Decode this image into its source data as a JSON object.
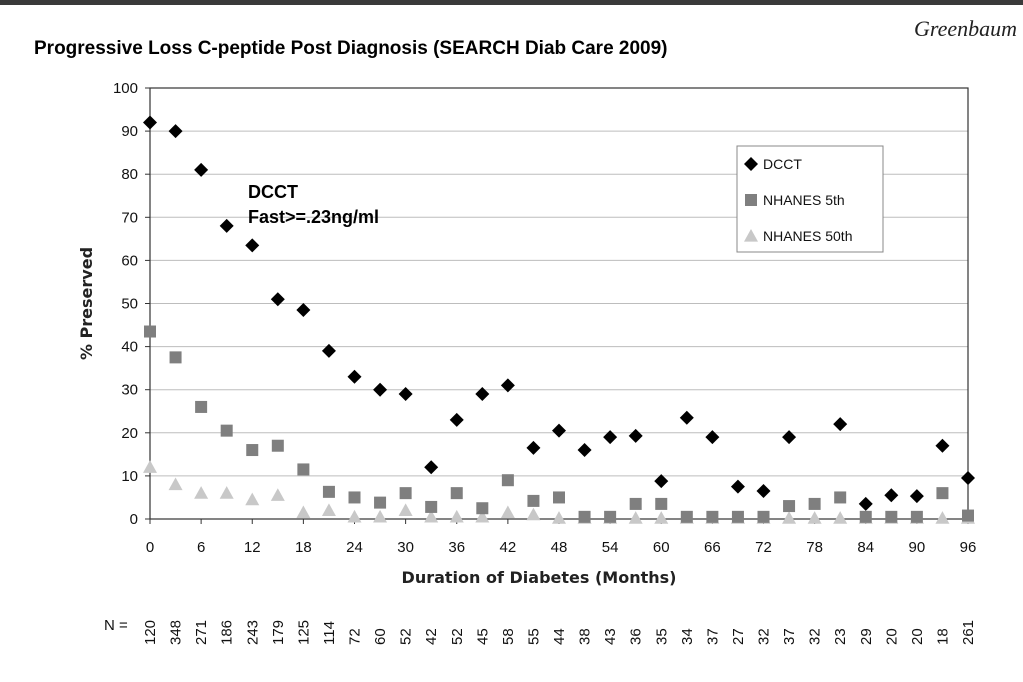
{
  "slide": {
    "title": "Progressive Loss C-peptide Post Diagnosis (SEARCH Diab Care 2009)",
    "author": "Greenbaum"
  },
  "chart_data": {
    "type": "scatter",
    "xlabel": "Duration of Diabetes (Months)",
    "ylabel": "% Preserved",
    "xlim": [
      0,
      96
    ],
    "ylim": [
      0,
      100
    ],
    "x_ticks": [
      0,
      6,
      12,
      18,
      24,
      30,
      36,
      42,
      48,
      54,
      60,
      66,
      72,
      78,
      84,
      90,
      96
    ],
    "y_ticks": [
      0,
      10,
      20,
      30,
      40,
      50,
      60,
      70,
      80,
      90,
      100
    ],
    "grid": "horizontal",
    "legend_position": "top-right",
    "annotation": [
      "DCCT",
      "Fast>=.23ng/ml"
    ],
    "n_prefix": "N =",
    "n_values": [
      "120",
      "348",
      "271",
      "186",
      "243",
      "179",
      "125",
      "114",
      "72",
      "60",
      "52",
      "42",
      "52",
      "45",
      "58",
      "55",
      "44",
      "38",
      "43",
      "36",
      "35",
      "34",
      "37",
      "27",
      "32",
      "37",
      "32",
      "23",
      "29",
      "20",
      "20",
      "18",
      "261"
    ],
    "x": [
      0,
      3,
      6,
      9,
      12,
      15,
      18,
      21,
      24,
      27,
      30,
      33,
      36,
      39,
      42,
      45,
      48,
      51,
      54,
      57,
      60,
      63,
      66,
      69,
      72,
      75,
      78,
      81,
      84,
      87,
      90,
      93,
      96
    ],
    "series": [
      {
        "name": "DCCT",
        "marker": "diamond",
        "color": "#000000",
        "values": [
          92,
          90,
          81,
          68,
          63.5,
          51,
          48.5,
          39,
          33,
          30,
          29,
          12,
          23,
          29,
          31,
          16.5,
          20.5,
          16,
          19,
          19.3,
          8.8,
          23.5,
          19,
          7.5,
          6.5,
          19,
          null,
          22,
          3.5,
          5.5,
          5.3,
          17,
          9.5
        ]
      },
      {
        "name": "NHANES 5th",
        "marker": "square",
        "color": "#7f7f7f",
        "values": [
          43.5,
          37.5,
          26,
          20.5,
          16,
          17,
          11.5,
          6.3,
          5,
          3.8,
          6,
          2.8,
          6,
          2.5,
          9,
          4.2,
          5,
          0.5,
          0.5,
          3.5,
          3.5,
          0.5,
          0.5,
          0.5,
          0.5,
          3,
          3.5,
          5,
          0.5,
          0.5,
          0.5,
          6,
          0.8
        ]
      },
      {
        "name": "NHANES 50th",
        "marker": "triangle",
        "color": "#c8c8c8",
        "values": [
          12,
          8,
          6,
          6,
          4.5,
          5.5,
          1.5,
          2,
          0.5,
          0.5,
          2,
          0.5,
          0.5,
          0.5,
          1.5,
          1,
          0.2,
          0.2,
          0.2,
          0.2,
          0.2,
          0.2,
          0.2,
          0.2,
          0.2,
          0.2,
          0.2,
          0.2,
          0.2,
          0.2,
          0.2,
          0.2,
          0.2
        ]
      }
    ]
  }
}
